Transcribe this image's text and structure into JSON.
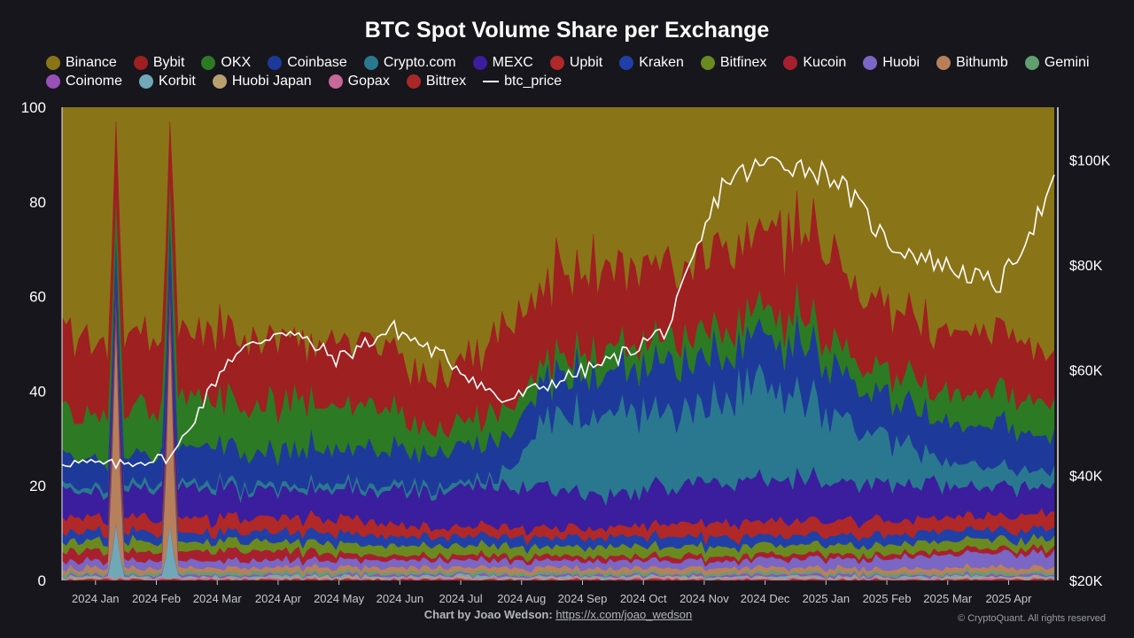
{
  "chart_data": {
    "type": "area",
    "stacked": true,
    "title": "BTC Spot Volume Share per Exchange",
    "ylabel_left": "",
    "ylim_left": [
      0,
      100
    ],
    "yticks_left": [
      "0",
      "20",
      "40",
      "60",
      "80",
      "100"
    ],
    "yticks_right": [
      "$20K",
      "$40K",
      "$60K",
      "$80K",
      "$100K"
    ],
    "ylim_right": [
      20000,
      110000
    ],
    "x_ticks": [
      "2024 Jan",
      "2024 Feb",
      "2024 Mar",
      "2024 Apr",
      "2024 May",
      "2024 Jun",
      "2024 Jul",
      "2024 Aug",
      "2024 Sep",
      "2024 Oct",
      "2024 Nov",
      "2024 Dec",
      "2025 Jan",
      "2025 Feb",
      "2025 Mar",
      "2025 Apr"
    ],
    "months_keyframes": [
      0,
      1,
      2,
      3,
      4,
      5,
      6,
      7,
      8,
      9,
      10,
      11,
      12,
      13,
      14,
      15,
      16
    ],
    "series": [
      {
        "name": "Binance",
        "color": "#8a7418",
        "values": "remainder to 100"
      },
      {
        "name": "Bybit",
        "color": "#9e2020",
        "values": [
          17,
          15,
          14,
          15,
          13,
          13,
          10,
          16,
          18,
          17,
          16,
          17,
          18,
          15,
          13,
          12,
          11
        ]
      },
      {
        "name": "OKX",
        "color": "#2d7a24",
        "values": [
          9,
          10,
          11,
          10,
          10,
          9,
          5,
          6,
          4,
          5,
          5,
          5,
          6,
          5,
          6,
          7,
          7
        ]
      },
      {
        "name": "Coinbase",
        "color": "#1d3a9a",
        "values": [
          6,
          6,
          7,
          7,
          8,
          8,
          7,
          8,
          9,
          9,
          10,
          10,
          11,
          9,
          8,
          9,
          8
        ]
      },
      {
        "name": "Crypto.com",
        "color": "#2a7890",
        "values": [
          1,
          1,
          1,
          1,
          1,
          1,
          1,
          1,
          17,
          17,
          16,
          20,
          16,
          12,
          6,
          4,
          3
        ]
      },
      {
        "name": "MEXC",
        "color": "#3a1e9e",
        "values": [
          6,
          5,
          7,
          6,
          6,
          7,
          8,
          9,
          8,
          7,
          8,
          9,
          9,
          8,
          7,
          6,
          6
        ]
      },
      {
        "name": "Upbit",
        "color": "#b02828",
        "values": [
          3,
          3,
          3,
          3,
          3,
          3,
          2,
          2,
          2,
          2,
          3,
          3,
          3,
          3,
          3,
          3,
          3
        ]
      },
      {
        "name": "Kraken",
        "color": "#2040a8",
        "values": [
          2,
          2,
          2,
          2,
          2,
          2,
          2,
          2,
          2,
          2,
          2,
          2,
          2,
          2,
          2,
          2,
          2
        ]
      },
      {
        "name": "Bitfinex",
        "color": "#6a8a20",
        "values": [
          2,
          2,
          2,
          2,
          2,
          2,
          2,
          2,
          2,
          2,
          2,
          2,
          2,
          2,
          2,
          2,
          2
        ]
      },
      {
        "name": "Kucoin",
        "color": "#a82030",
        "values": [
          2,
          2,
          2,
          2,
          2,
          1,
          1,
          1,
          1,
          1,
          1,
          1,
          1,
          1,
          1,
          1,
          1
        ]
      },
      {
        "name": "Huobi",
        "color": "#7a66c4",
        "values": [
          1.5,
          1.5,
          1.5,
          1.5,
          1.5,
          1.5,
          1.5,
          1.5,
          1.5,
          1.5,
          1.5,
          1.5,
          2,
          2,
          2.5,
          3,
          3
        ]
      },
      {
        "name": "Bithumb",
        "color": "#b8805a",
        "values": [
          1,
          1,
          1,
          1,
          1,
          1,
          1,
          1,
          1,
          1,
          1,
          1,
          1,
          1,
          1,
          1,
          1
        ]
      },
      {
        "name": "Gemini",
        "color": "#60a070",
        "values": [
          0.5,
          0.5,
          0.5,
          0.5,
          0.5,
          0.5,
          0.5,
          0.5,
          0.5,
          0.5,
          0.5,
          0.5,
          0.5,
          0.5,
          0.5,
          0.5,
          0.5
        ]
      },
      {
        "name": "Coinome",
        "color": "#9850b8",
        "values": [
          0.3,
          0.3,
          0.3,
          0.3,
          0.3,
          0.3,
          0.3,
          0.3,
          0.3,
          0.3,
          0.3,
          0.3,
          0.3,
          0.3,
          0.3,
          0.3,
          0.3
        ]
      },
      {
        "name": "Korbit",
        "color": "#70a8b8",
        "values": [
          0.3,
          0.3,
          0.3,
          0.3,
          0.3,
          0.3,
          0.3,
          0.3,
          0.3,
          0.3,
          0.3,
          0.3,
          0.3,
          0.3,
          0.3,
          0.3,
          0.3
        ]
      },
      {
        "name": "Huobi Japan",
        "color": "#b8a070",
        "values": [
          0.2,
          0.2,
          0.2,
          0.2,
          0.2,
          0.2,
          0.2,
          0.2,
          0.2,
          0.2,
          0.2,
          0.2,
          0.2,
          0.2,
          0.2,
          0.2,
          0.2
        ]
      },
      {
        "name": "Gopax",
        "color": "#c86898",
        "values": [
          0.2,
          0.2,
          0.2,
          0.2,
          0.2,
          0.2,
          0.2,
          0.2,
          0.2,
          0.2,
          0.2,
          0.2,
          0.2,
          0.2,
          0.2,
          0.2,
          0.2
        ]
      },
      {
        "name": "Bittrex",
        "color": "#a82828",
        "values": [
          0.2,
          0.2,
          0.2,
          0.2,
          0.2,
          0.2,
          0.2,
          0.2,
          0.2,
          0.2,
          0.2,
          0.2,
          0.2,
          0.2,
          0.2,
          0.2,
          0.2
        ]
      }
    ],
    "line_series": {
      "name": "btc_price",
      "color": "#ffffff",
      "axis": "right",
      "values": [
        42500,
        42000,
        43500,
        62000,
        68000,
        62000,
        68000,
        62000,
        54000,
        58000,
        62000,
        68000,
        96000,
        100000,
        97000,
        84000,
        80000,
        76000,
        95000
      ]
    }
  },
  "legend": {
    "row1": [
      "Binance",
      "Bybit",
      "OKX",
      "Coinbase",
      "Crypto.com",
      "MEXC",
      "Upbit",
      "Kraken",
      "Bitfinex",
      "Kucoin",
      "Huobi",
      "Bithumb",
      "Gemini"
    ],
    "row2": [
      "Coinome",
      "Korbit",
      "Huobi Japan",
      "Gopax",
      "Bittrex"
    ],
    "line_label": "btc_price"
  },
  "footer": {
    "credit_label": "Chart by Joao Wedson:",
    "credit_link": "https://x.com/joao_wedson",
    "copyright": "© CryptoQuant. All rights reserved"
  },
  "colors": {
    "background": "#16161c",
    "text": "#ffffff"
  }
}
